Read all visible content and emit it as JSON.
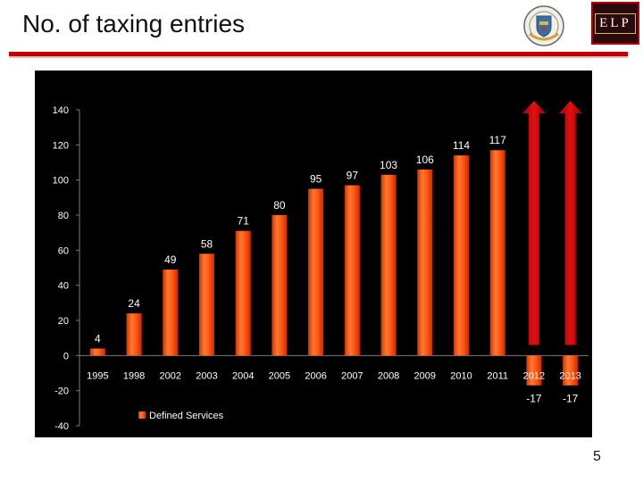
{
  "header": {
    "title": "No. of taxing entries",
    "logo_text": "ELP",
    "seal_icon": "university-seal-icon"
  },
  "colors": {
    "accent_rule": "#c00000",
    "bar_fill": "#ff4a10",
    "bar_highlight": "#ff8a3a",
    "arrow": "#cc0000",
    "panel_bg": "#000000",
    "chart_text": "#ffffff"
  },
  "chart_data": {
    "type": "bar",
    "title": "",
    "xlabel": "",
    "ylabel": "",
    "categories": [
      "1995",
      "1998",
      "2002",
      "2003",
      "2004",
      "2005",
      "2006",
      "2007",
      "2008",
      "2009",
      "2010",
      "2011",
      "2012",
      "2013"
    ],
    "series": [
      {
        "name": "Defined Services",
        "values": [
          4,
          24,
          49,
          58,
          71,
          80,
          95,
          97,
          103,
          106,
          114,
          117,
          -17,
          -17
        ],
        "data_labels": [
          "4",
          "24",
          "49",
          "58",
          "71",
          "80",
          "95",
          "97",
          "103",
          "106",
          "114",
          "117",
          "-17",
          "-17"
        ]
      }
    ],
    "ylim": [
      -40,
      140
    ],
    "yticks": [
      140,
      120,
      100,
      80,
      60,
      40,
      20,
      0,
      -20,
      -40
    ],
    "grid": false,
    "legend": "bottom-left",
    "annotations": [
      {
        "type": "up-arrow",
        "category": "2012"
      },
      {
        "type": "up-arrow",
        "category": "2013"
      }
    ]
  },
  "footer": {
    "page_number": "5"
  }
}
